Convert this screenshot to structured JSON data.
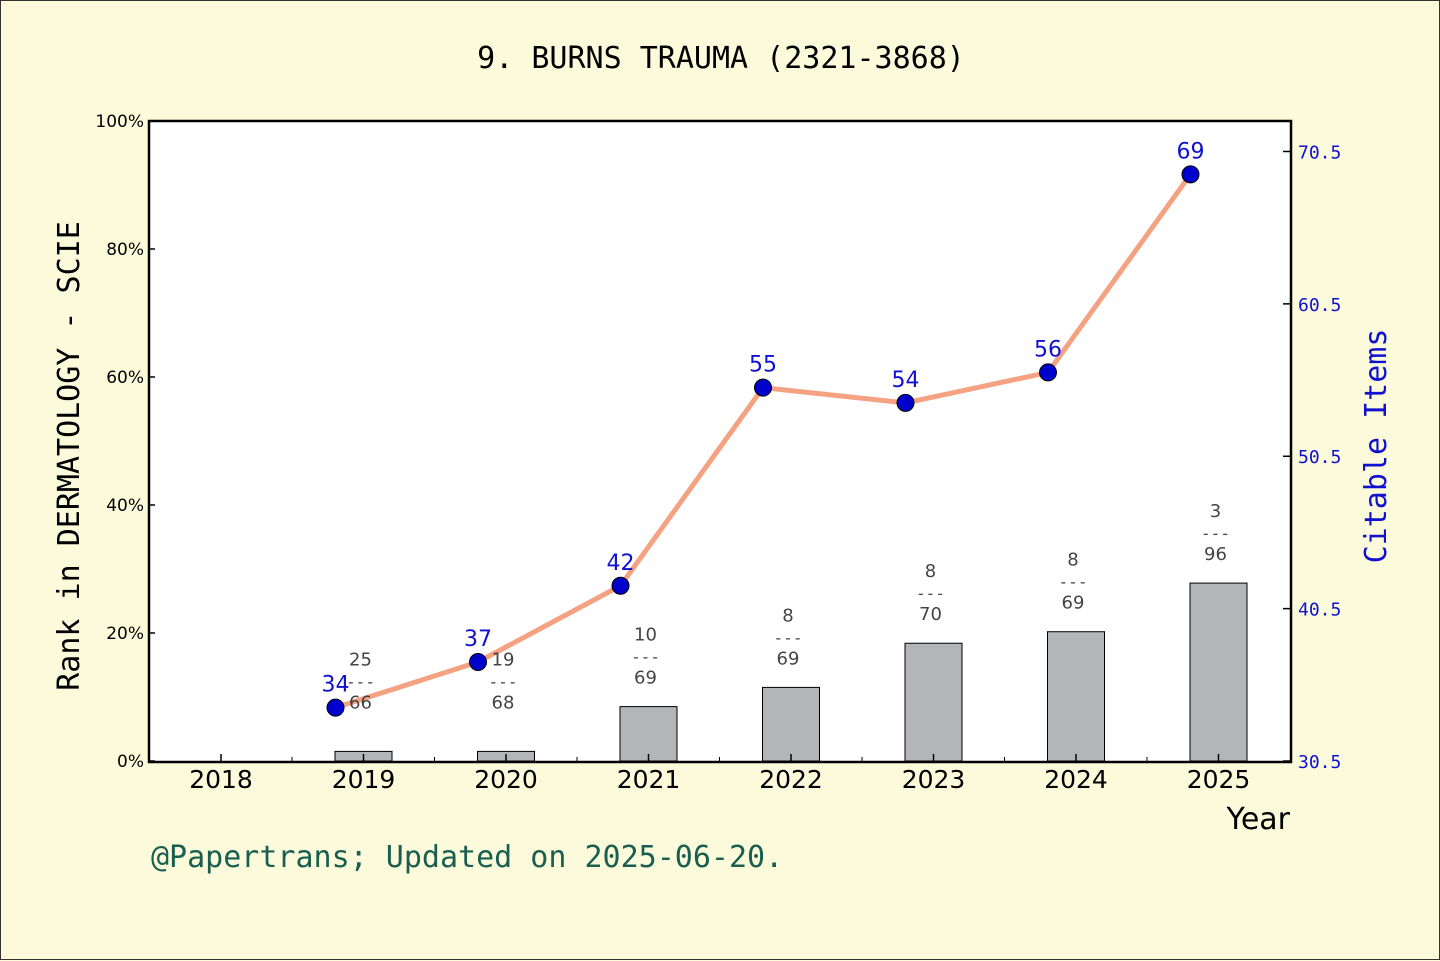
{
  "chart_data": {
    "type": "bar",
    "title": "9. BURNS TRAUMA (2321-3868)",
    "xlabel": "Year",
    "ylabel": "Rank in DERMATOLOGY - SCIE",
    "y2label": "Citable Items",
    "categories": [
      "2018",
      "2019",
      "2020",
      "2021",
      "2022",
      "2023",
      "2024",
      "2025"
    ],
    "ylim": [
      0,
      100
    ],
    "y_ticks": [
      "0%",
      "20%",
      "40%",
      "60%",
      "80%",
      "100%"
    ],
    "y2lim": [
      30.5,
      72.5
    ],
    "y2_ticks": [
      "30.5",
      "40.5",
      "50.5",
      "60.5",
      "70.5"
    ],
    "series": [
      {
        "type": "bar",
        "values": [
          null,
          1.5,
          1.5,
          8.5,
          11.5,
          18.4,
          20.2,
          27.8
        ],
        "rank": [
          null,
          "25",
          "19",
          "10",
          "8",
          "8",
          "8",
          "3"
        ],
        "total": [
          null,
          "66",
          "68",
          "69",
          "69",
          "70",
          "69",
          "96"
        ],
        "color": "#b4b5b8"
      },
      {
        "type": "line",
        "axis": "right",
        "values": [
          null,
          34,
          37,
          42,
          55,
          54,
          56,
          69
        ],
        "line_color": "#f5a282",
        "marker_color": "#0000cc"
      }
    ],
    "grid": false
  },
  "footer": "@Papertrans; Updated on 2025-06-20.",
  "colors": {
    "background": "#fbfbdc",
    "plot_background": "#ffffff",
    "bar": "#b4b5b8",
    "line": "#f5a282",
    "marker": "#0000cc",
    "right_axis": "#1010d0",
    "footer": "#1a5e4f"
  }
}
